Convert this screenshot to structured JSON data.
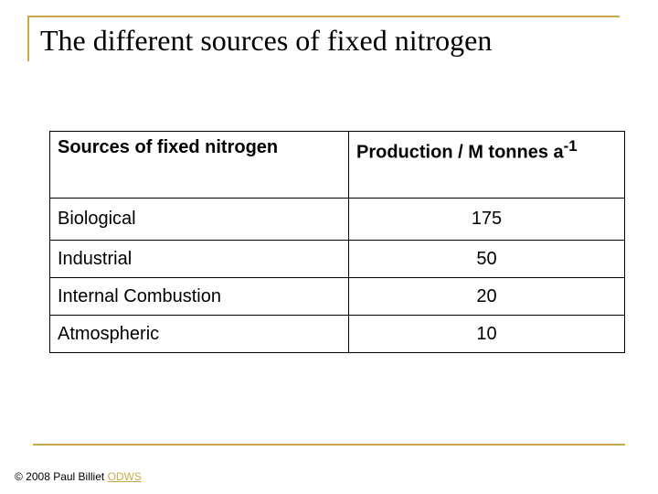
{
  "slide": {
    "title": "The different sources of fixed nitrogen"
  },
  "table": {
    "headers": {
      "source": "Sources of fixed nitrogen",
      "production": "Production / M tonnes a",
      "production_sup": "-1"
    },
    "rows": [
      {
        "source": "Biological",
        "value": "175"
      },
      {
        "source": "Industrial",
        "value": "50"
      },
      {
        "source": "Internal Combustion",
        "value": "20"
      },
      {
        "source": "Atmospheric",
        "value": "10"
      }
    ]
  },
  "footer": {
    "copyright": "© 2008 Paul Billiet ",
    "link": "ODWS"
  },
  "colors": {
    "accent": "#c9a94a"
  }
}
